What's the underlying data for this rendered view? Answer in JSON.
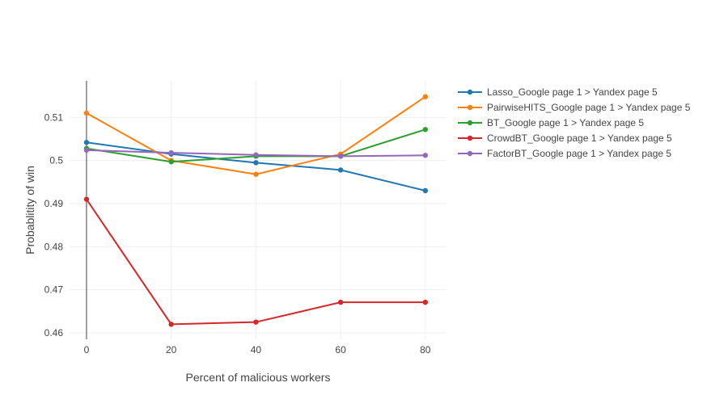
{
  "chart_data": {
    "type": "line",
    "xlabel": "Percent of malicious workers",
    "ylabel": "Probablitity of win",
    "x": [
      0,
      20,
      40,
      60,
      80
    ],
    "xlim": [
      -4,
      85
    ],
    "ylim": [
      0.4585,
      0.5185
    ],
    "xticks": [
      0,
      20,
      40,
      60,
      80
    ],
    "yticks": [
      0.46,
      0.47,
      0.48,
      0.49,
      0.5,
      0.51
    ],
    "xtick_labels": [
      "0",
      "20",
      "40",
      "60",
      "80"
    ],
    "ytick_labels": [
      "0.46",
      "0.47",
      "0.48",
      "0.49",
      "0.5",
      "0.51"
    ],
    "grid": true,
    "legend_position": "top-right, outside plot",
    "series": [
      {
        "name": "Lasso_Google page 1 > Yandex page 5",
        "color": "#1f77b4",
        "values": [
          0.5042,
          0.5015,
          0.4995,
          0.4978,
          0.493
        ]
      },
      {
        "name": "PairwiseHITS_Google page 1 > Yandex page 5",
        "color": "#ff7f0e",
        "values": [
          0.511,
          0.5,
          0.4968,
          0.5015,
          0.5148
        ]
      },
      {
        "name": "BT_Google page 1 > Yandex page 5",
        "color": "#2ca02c",
        "values": [
          0.5028,
          0.4997,
          0.501,
          0.501,
          0.5072
        ]
      },
      {
        "name": "CrowdBT_Google page 1 > Yandex page 5",
        "color": "#d62728",
        "values": [
          0.491,
          0.462,
          0.4625,
          0.4671,
          0.4671
        ]
      },
      {
        "name": "FactorBT_Google page 1 > Yandex page 5",
        "color": "#9467bd",
        "values": [
          0.5024,
          0.5018,
          0.5013,
          0.501,
          0.5012
        ]
      }
    ]
  }
}
